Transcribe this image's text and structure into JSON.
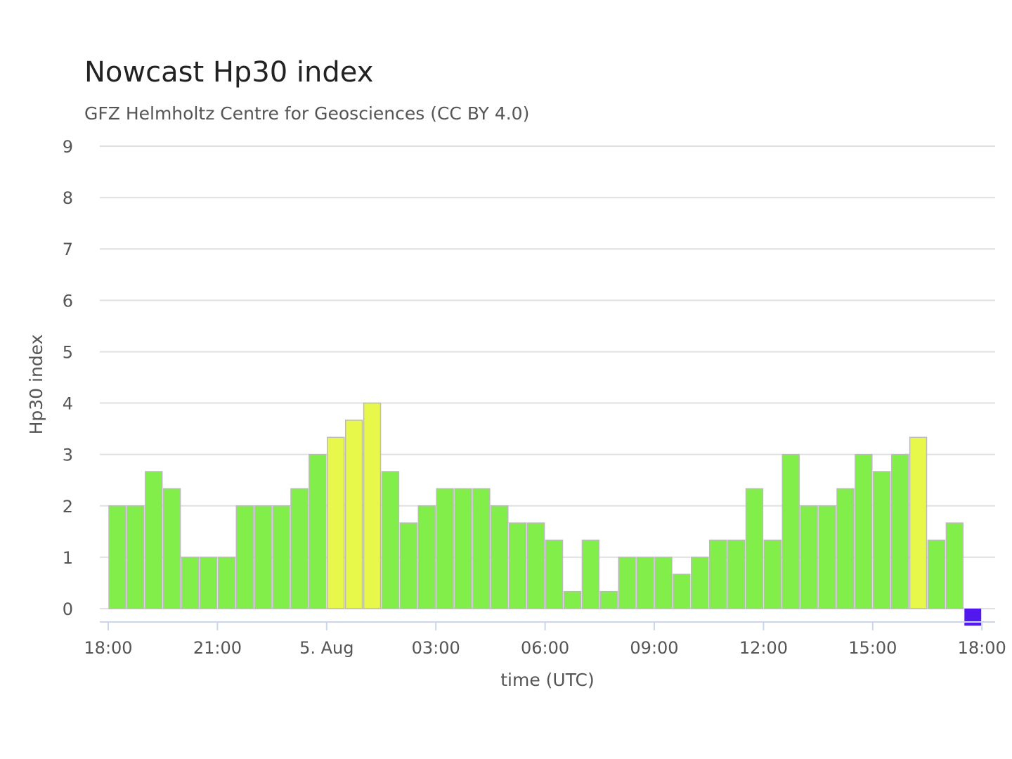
{
  "chart_data": {
    "type": "bar",
    "title": "Nowcast Hp30 index",
    "subtitle": "GFZ Helmholtz Centre for Geosciences (CC BY 4.0)",
    "xlabel": "time (UTC)",
    "ylabel": "Hp30 index",
    "ylim": [
      0,
      9
    ],
    "yticks": [
      "0",
      "1",
      "2",
      "3",
      "4",
      "5",
      "6",
      "7",
      "8",
      "9"
    ],
    "xticks": [
      {
        "label": "18:00",
        "at": "2025-08-04 18:00"
      },
      {
        "label": "21:00",
        "at": "2025-08-04 21:00"
      },
      {
        "label": "5. Aug",
        "at": "2025-08-05 00:00"
      },
      {
        "label": "03:00",
        "at": "2025-08-05 03:00"
      },
      {
        "label": "06:00",
        "at": "2025-08-05 06:00"
      },
      {
        "label": "09:00",
        "at": "2025-08-05 09:00"
      },
      {
        "label": "12:00",
        "at": "2025-08-05 12:00"
      },
      {
        "label": "15:00",
        "at": "2025-08-05 15:00"
      },
      {
        "label": "18:00",
        "at": "2025-08-05 18:00"
      }
    ],
    "grid": true,
    "legend": "none",
    "colors": {
      "low": "#82ee4a",
      "elevated": "#e8f84b",
      "current": "#5218ee",
      "bar_border": "#bbbbbb",
      "grid": "#e0e0e0",
      "axis": "#ccd6eb"
    },
    "x": [
      "2025-08-04 18:00",
      "2025-08-04 18:30",
      "2025-08-04 19:00",
      "2025-08-04 19:30",
      "2025-08-04 20:00",
      "2025-08-04 20:30",
      "2025-08-04 21:00",
      "2025-08-04 21:30",
      "2025-08-04 22:00",
      "2025-08-04 22:30",
      "2025-08-04 23:00",
      "2025-08-04 23:30",
      "2025-08-05 00:00",
      "2025-08-05 00:30",
      "2025-08-05 01:00",
      "2025-08-05 01:30",
      "2025-08-05 02:00",
      "2025-08-05 02:30",
      "2025-08-05 03:00",
      "2025-08-05 03:30",
      "2025-08-05 04:00",
      "2025-08-05 04:30",
      "2025-08-05 05:00",
      "2025-08-05 05:30",
      "2025-08-05 06:00",
      "2025-08-05 06:30",
      "2025-08-05 07:00",
      "2025-08-05 07:30",
      "2025-08-05 08:00",
      "2025-08-05 08:30",
      "2025-08-05 09:00",
      "2025-08-05 09:30",
      "2025-08-05 10:00",
      "2025-08-05 10:30",
      "2025-08-05 11:00",
      "2025-08-05 11:30",
      "2025-08-05 12:00",
      "2025-08-05 12:30",
      "2025-08-05 13:00",
      "2025-08-05 13:30",
      "2025-08-05 14:00",
      "2025-08-05 14:30",
      "2025-08-05 15:00",
      "2025-08-05 15:30",
      "2025-08-05 16:00",
      "2025-08-05 16:30",
      "2025-08-05 17:00",
      "2025-08-05 17:30"
    ],
    "values": [
      2,
      2,
      2.667,
      2.333,
      1,
      1,
      1,
      2,
      2,
      2,
      2.333,
      3,
      3.333,
      3.667,
      4,
      2.667,
      1.667,
      2,
      2.333,
      2.333,
      2.333,
      2,
      1.667,
      1.667,
      1.333,
      0.333,
      1.333,
      0.333,
      1,
      1,
      1,
      0.667,
      1,
      1.333,
      1.333,
      2.333,
      1.333,
      3,
      2,
      2,
      2.333,
      3,
      2.667,
      3,
      3.333,
      1.333,
      1.667,
      -0.333
    ],
    "bar_colors": [
      "low",
      "low",
      "low",
      "low",
      "low",
      "low",
      "low",
      "low",
      "low",
      "low",
      "low",
      "low",
      "elevated",
      "elevated",
      "elevated",
      "low",
      "low",
      "low",
      "low",
      "low",
      "low",
      "low",
      "low",
      "low",
      "low",
      "low",
      "low",
      "low",
      "low",
      "low",
      "low",
      "low",
      "low",
      "low",
      "low",
      "low",
      "low",
      "low",
      "low",
      "low",
      "low",
      "low",
      "low",
      "low",
      "elevated",
      "low",
      "low",
      "current"
    ]
  }
}
